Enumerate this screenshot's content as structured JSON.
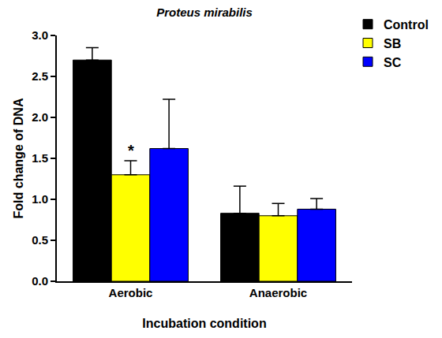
{
  "chart_data": {
    "type": "bar",
    "title": "Proteus mirabilis",
    "x_label": "Incubation condition",
    "y_label": "Fold change of DNA",
    "categories": [
      "Aerobic",
      "Anaerobic"
    ],
    "series": [
      {
        "name": "Control",
        "color": "#000000",
        "values": [
          2.7,
          0.83
        ],
        "errors": [
          0.15,
          0.33
        ]
      },
      {
        "name": "SB",
        "color": "#ffff00",
        "values": [
          1.3,
          0.8
        ],
        "errors": [
          0.17,
          0.15
        ]
      },
      {
        "name": "SC",
        "color": "#0000ff",
        "values": [
          1.62,
          0.88
        ],
        "errors": [
          0.6,
          0.13
        ]
      }
    ],
    "annotations": [
      {
        "text": "*",
        "category": "Aerobic",
        "series": "SB"
      }
    ],
    "ylim": [
      0,
      3
    ],
    "yticks": [
      {
        "value": 0,
        "label": "0.0"
      },
      {
        "value": 0.5,
        "label": "0.5"
      },
      {
        "value": 1,
        "label": "1.0"
      },
      {
        "value": 1.5,
        "label": "1.5"
      },
      {
        "value": 2,
        "label": "2.0"
      },
      {
        "value": 2.5,
        "label": "2.5"
      },
      {
        "value": 3,
        "label": "3.0"
      }
    ],
    "grid": false,
    "legend": "top-right"
  }
}
